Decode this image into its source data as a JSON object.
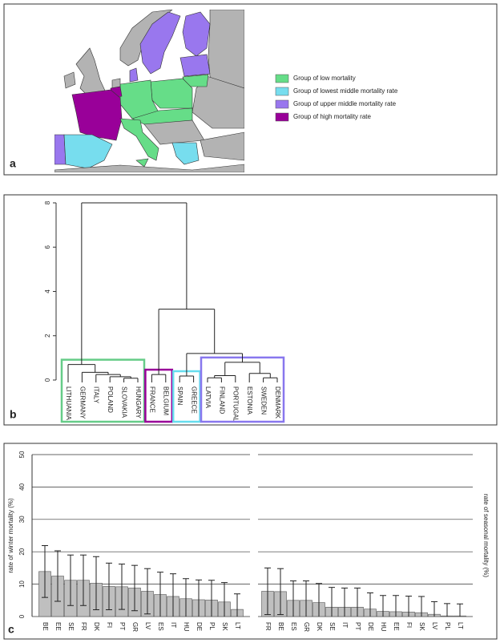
{
  "chart_data": [
    {
      "type": "map",
      "panel_label": "a",
      "legend": [
        {
          "name": "Group of low mortality",
          "color": "#66dd88"
        },
        {
          "name": "Group of lowest middle mortality rate",
          "color": "#77ddee"
        },
        {
          "name": "Group of upper middle mortality rate",
          "color": "#9977ee"
        },
        {
          "name": "Group of high mortality rate",
          "color": "#990099"
        }
      ]
    },
    {
      "type": "dendrogram",
      "panel_label": "b",
      "ylim": [
        0,
        8
      ],
      "yticks": [
        0,
        2,
        4,
        6,
        8
      ],
      "tree": {
        "height": 8,
        "children": [
          {
            "height": 0.7,
            "box": "#66cc88",
            "children": [
              {
                "label": "LITHUANIA"
              },
              {
                "height": 0.35,
                "children": [
                  {
                    "label": "GERMANY"
                  },
                  {
                    "height": 0.25,
                    "children": [
                      {
                        "label": "ITALY"
                      },
                      {
                        "height": 0.15,
                        "children": [
                          {
                            "label": "POLAND"
                          },
                          {
                            "height": 0.08,
                            "children": [
                              {
                                "label": "SLOVAKIA"
                              },
                              {
                                "label": "HUNGARY"
                              }
                            ]
                          }
                        ]
                      }
                    ]
                  }
                ]
              }
            ]
          },
          {
            "height": 3.2,
            "children": [
              {
                "height": 0.25,
                "box": "#990099",
                "children": [
                  {
                    "label": "FRANCE"
                  },
                  {
                    "label": "BELGIUM"
                  }
                ]
              },
              {
                "height": 1.2,
                "children": [
                  {
                    "height": 0.18,
                    "box": "#66ddee",
                    "children": [
                      {
                        "label": "SPAIN"
                      },
                      {
                        "label": "GREECE"
                      }
                    ]
                  },
                  {
                    "height": 0.8,
                    "box": "#8877ee",
                    "children": [
                      {
                        "height": 0.2,
                        "children": [
                          {
                            "height": 0.1,
                            "children": [
                              {
                                "label": "LATVIA"
                              },
                              {
                                "label": "FINLAND"
                              }
                            ]
                          },
                          {
                            "label": "PORTUGAL"
                          }
                        ]
                      },
                      {
                        "height": 0.3,
                        "children": [
                          {
                            "label": "ESTONIA"
                          },
                          {
                            "height": 0.1,
                            "children": [
                              {
                                "label": "SWEDEN"
                              },
                              {
                                "label": "DENMARK"
                              }
                            ]
                          }
                        ]
                      }
                    ]
                  }
                ]
              }
            ]
          }
        ]
      }
    },
    {
      "type": "bar",
      "panel_label": "c",
      "ylabel": "rate of winter mortality (%)",
      "color": "#bfbfbf",
      "ylim": [
        0,
        50
      ],
      "yticks": [
        0,
        10,
        20,
        30,
        40,
        50
      ],
      "grid": true,
      "tick_labels": true,
      "categories": [
        "BE",
        "EE",
        "SE",
        "FR",
        "DK",
        "FI",
        "PT",
        "GR",
        "LV",
        "ES",
        "IT",
        "HU",
        "DE",
        "PL",
        "SK",
        "LT"
      ],
      "values": [
        13.9,
        12.5,
        11.2,
        11.2,
        10.3,
        9.3,
        9.2,
        8.8,
        7.8,
        6.8,
        6.2,
        5.5,
        5.2,
        5.1,
        4.5,
        2.2
      ],
      "errors": [
        8,
        7.8,
        7.8,
        7.8,
        8.2,
        7.2,
        7,
        7,
        7,
        6.9,
        7,
        6.2,
        6.1,
        6.1,
        6,
        4.8
      ]
    },
    {
      "type": "bar",
      "ylabel": "rate of seasonal mortality (%)",
      "color": "#bfbfbf",
      "ylim": [
        0,
        50
      ],
      "yticks": [
        0,
        10,
        20,
        30,
        40,
        50
      ],
      "grid": true,
      "tick_labels": false,
      "categories": [
        "FR",
        "BE",
        "ES",
        "GR",
        "DK",
        "SE",
        "IT",
        "PT",
        "DE",
        "HU",
        "EE",
        "FI",
        "SK",
        "LV",
        "PL",
        "LT"
      ],
      "values": [
        7.8,
        7.7,
        5,
        5,
        4.3,
        2.9,
        2.9,
        2.9,
        2.3,
        1.6,
        1.5,
        1.4,
        1.2,
        0.7,
        0.2,
        0.2
      ],
      "errors": [
        7.2,
        7.1,
        6,
        6,
        5.9,
        6.1,
        5.9,
        5.9,
        5,
        4.9,
        5,
        4.9,
        5,
        3.9,
        3.8,
        3.7
      ]
    }
  ]
}
